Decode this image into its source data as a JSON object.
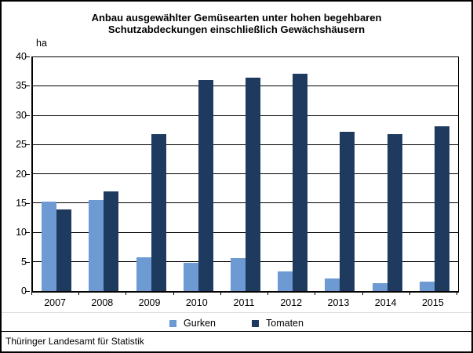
{
  "title": {
    "line1": "Anbau ausgewählter Gemüsearten unter hohen begehbaren",
    "line2": "Schutzabdeckungen einschließlich Gewächshäusern"
  },
  "y_unit": "ha",
  "footer": {
    "source": "Thüringer Landesamt für Statistik"
  },
  "colors": {
    "gurken": "#6D9AD3",
    "tomaten": "#1F3A5F",
    "gridline": "#000000",
    "border": "#000000"
  },
  "chart_data": {
    "type": "bar",
    "title": "Anbau ausgewählter Gemüsearten unter hohen begehbaren Schutzabdeckungen einschließlich Gewächshäusern",
    "categories": [
      "2007",
      "2008",
      "2009",
      "2010",
      "2011",
      "2012",
      "2013",
      "2014",
      "2015"
    ],
    "series": [
      {
        "name": "Gurken",
        "color": "#6D9AD3",
        "values": [
          15.3,
          15.6,
          5.8,
          4.8,
          5.6,
          3.4,
          2.2,
          1.3,
          1.6
        ]
      },
      {
        "name": "Tomaten",
        "color": "#1F3A5F",
        "values": [
          14.0,
          17.0,
          26.9,
          36.1,
          36.5,
          37.2,
          27.3,
          26.9,
          28.2
        ]
      }
    ],
    "xlabel": "",
    "ylabel": "ha",
    "ylim": [
      0,
      40
    ],
    "ytick_step": 5,
    "grid": true,
    "legend_position": "bottom"
  }
}
